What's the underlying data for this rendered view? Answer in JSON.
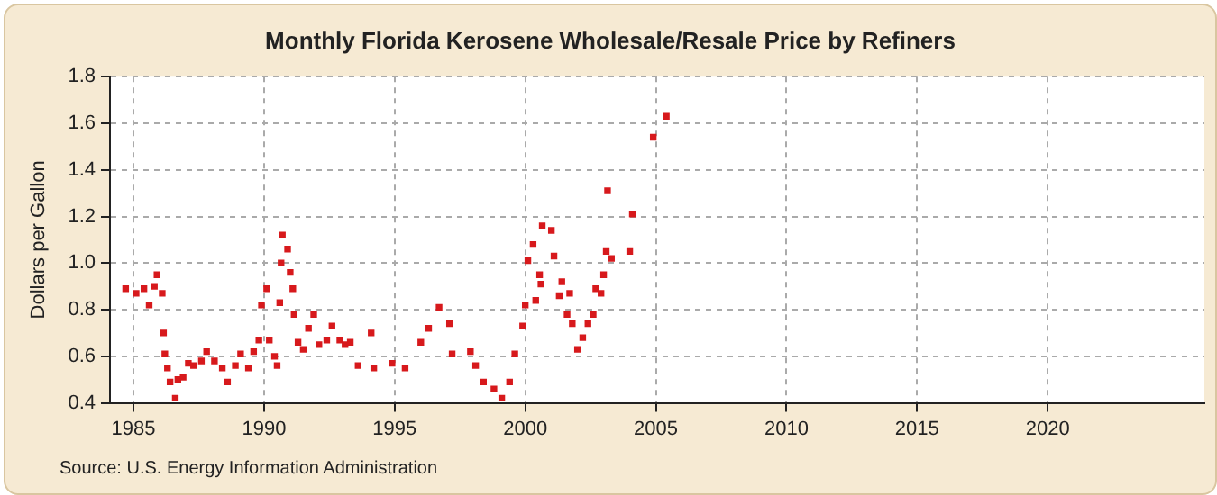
{
  "chart_data": {
    "type": "scatter",
    "title": "Monthly Florida Kerosene Wholesale/Resale Price by Refiners",
    "ylabel": "Dollars per Gallon",
    "annotations": [
      "Source: U.S. Energy Information Administration"
    ],
    "x": [
      1984.7,
      1985.1,
      1985.4,
      1985.6,
      1985.8,
      1985.9,
      1986.1,
      1986.15,
      1986.2,
      1986.3,
      1986.4,
      1986.6,
      1986.7,
      1986.9,
      1987.1,
      1987.3,
      1987.6,
      1987.8,
      1988.1,
      1988.4,
      1988.6,
      1988.9,
      1989.1,
      1989.4,
      1989.6,
      1989.8,
      1989.9,
      1990.1,
      1990.2,
      1990.4,
      1990.5,
      1990.6,
      1990.65,
      1990.7,
      1990.9,
      1991.0,
      1991.1,
      1991.15,
      1991.3,
      1991.5,
      1991.7,
      1991.9,
      1992.1,
      1992.4,
      1992.6,
      1992.9,
      1993.1,
      1993.3,
      1993.6,
      1994.1,
      1994.2,
      1994.9,
      1995.4,
      1996.0,
      1996.3,
      1996.7,
      1997.1,
      1997.2,
      1997.9,
      1998.1,
      1998.4,
      1998.8,
      1999.1,
      1999.4,
      1999.6,
      1999.9,
      2000.0,
      2000.1,
      2000.3,
      2000.4,
      2000.55,
      2000.6,
      2000.65,
      2001.0,
      2001.1,
      2001.3,
      2001.4,
      2001.6,
      2001.7,
      2001.8,
      2002.0,
      2002.2,
      2002.4,
      2002.6,
      2002.7,
      2002.9,
      2003.0,
      2003.1,
      2003.15,
      2003.3,
      2004.0,
      2004.1,
      2004.9,
      2005.4
    ],
    "series": [
      {
        "color": "#d7191c",
        "values": [
          0.89,
          0.87,
          0.89,
          0.82,
          0.9,
          0.95,
          0.87,
          0.7,
          0.61,
          0.55,
          0.49,
          0.42,
          0.5,
          0.51,
          0.57,
          0.56,
          0.58,
          0.62,
          0.58,
          0.55,
          0.49,
          0.56,
          0.61,
          0.55,
          0.62,
          0.67,
          0.82,
          0.89,
          0.67,
          0.6,
          0.56,
          0.83,
          1.0,
          1.12,
          1.06,
          0.96,
          0.89,
          0.78,
          0.66,
          0.63,
          0.72,
          0.78,
          0.65,
          0.67,
          0.73,
          0.67,
          0.65,
          0.66,
          0.56,
          0.7,
          0.55,
          0.57,
          0.55,
          0.66,
          0.72,
          0.81,
          0.74,
          0.61,
          0.62,
          0.56,
          0.49,
          0.46,
          0.42,
          0.49,
          0.61,
          0.73,
          0.82,
          1.01,
          1.08,
          0.84,
          0.95,
          0.91,
          1.16,
          1.14,
          1.03,
          0.86,
          0.92,
          0.78,
          0.87,
          0.74,
          0.63,
          0.68,
          0.74,
          0.78,
          0.89,
          0.87,
          0.95,
          1.05,
          1.31,
          1.02,
          1.05,
          1.21,
          1.54,
          1.63
        ]
      }
    ],
    "xlim": [
      1984.1,
      2026
    ],
    "xticks": [
      1985,
      1990,
      1995,
      2000,
      2005,
      2010,
      2015,
      2020
    ],
    "ylim": [
      0.4,
      1.8
    ],
    "yticks": [
      {
        "value": 0.4,
        "label": "0.4"
      },
      {
        "value": 0.6,
        "label": "0.6"
      },
      {
        "value": 0.8,
        "label": "0.8"
      },
      {
        "value": 1.0,
        "label": "1.0"
      },
      {
        "value": 1.2,
        "label": "1.2"
      },
      {
        "value": 1.4,
        "label": "1.4"
      },
      {
        "value": 1.6,
        "label": "1.6"
      },
      {
        "value": 1.8,
        "label": "1.8"
      }
    ],
    "grid": true,
    "legend": false,
    "marker": "square"
  }
}
